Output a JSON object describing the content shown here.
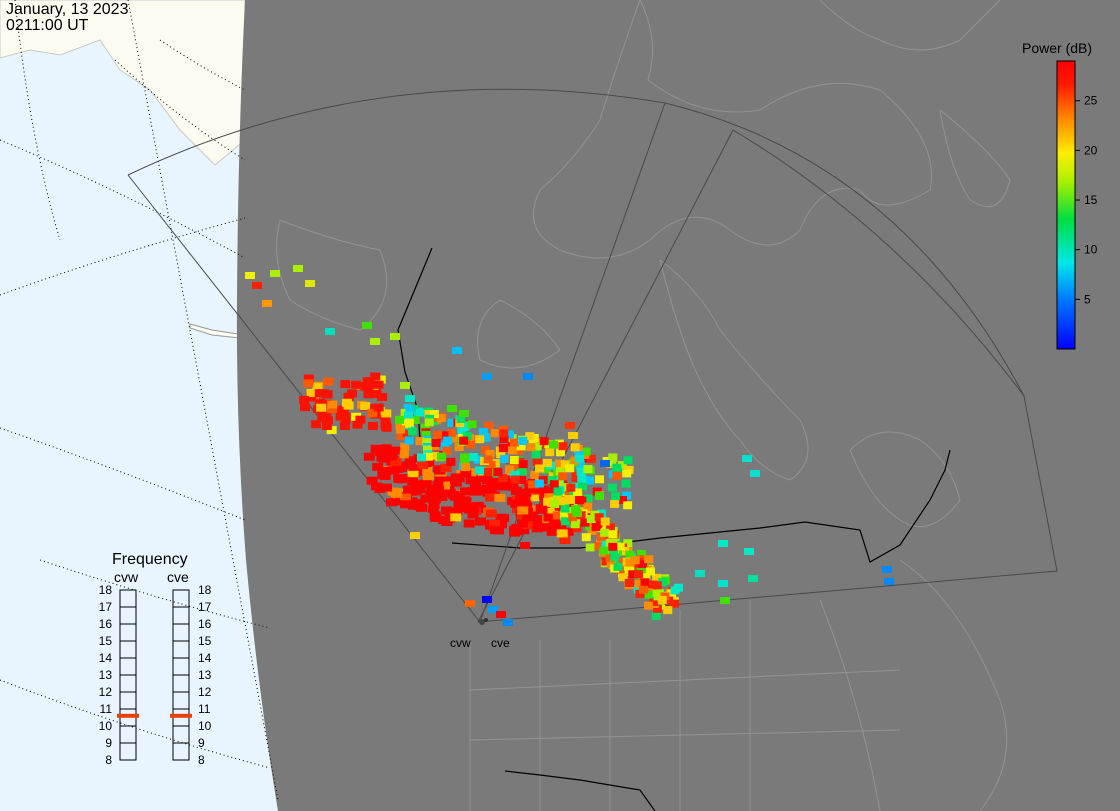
{
  "timestamp": {
    "date": "January, 13 2023",
    "time": "0211:00 UT"
  },
  "colorbar": {
    "title": "Power (dB)",
    "min": 0,
    "max": 29,
    "ticks": [
      "5",
      "10",
      "15",
      "20",
      "25"
    ],
    "tick_values": [
      5,
      10,
      15,
      20,
      25
    ]
  },
  "frequency": {
    "title": "Frequency",
    "radars": [
      "cvw",
      "cve"
    ],
    "ticks": [
      "18",
      "17",
      "16",
      "15",
      "14",
      "13",
      "12",
      "11",
      "10",
      "9",
      "8"
    ],
    "values_mhz": {
      "cvw": 10.6,
      "cve": 10.6
    },
    "marker_color": "#e8400c"
  },
  "map": {
    "stations": [
      "cvw",
      "cve"
    ],
    "colors": {
      "ocean": "#e8f5ff",
      "land": "#fbfbef",
      "night": "#7a7a7a",
      "lines": "#9a9a9a",
      "border": "#000000",
      "fov": "#444444"
    }
  }
}
